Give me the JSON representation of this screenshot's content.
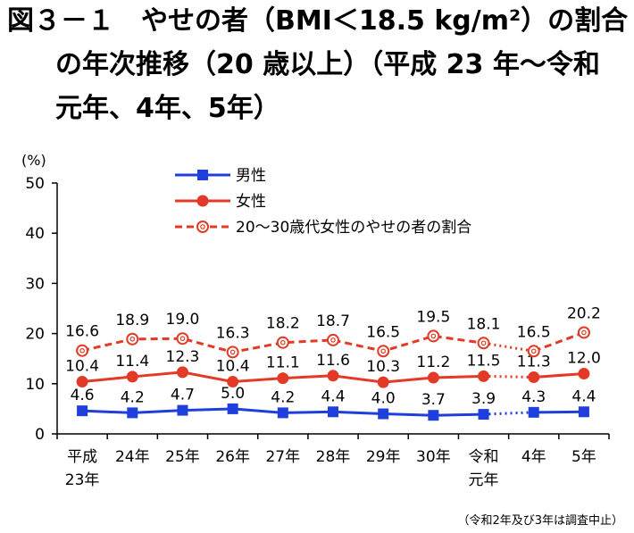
{
  "title": {
    "line1": "図３－１　やせの者（BMI＜18.5 kg/m²）の割合",
    "line2": "の年次推移（20 歳以上）（平成 23 年～令和",
    "line3": "元年、4年、5年）"
  },
  "note": "（令和2年及び3年は調査中止）",
  "colors": {
    "male": "#1f3fdc",
    "female": "#e23a26",
    "young_female": "#e23a26",
    "axis": "#000000"
  },
  "chart_data": {
    "type": "line",
    "ylabel": "(%)",
    "ylim": [
      0,
      50
    ],
    "yticks": [
      "0",
      "10",
      "20",
      "30",
      "40",
      "50"
    ],
    "categories": [
      [
        "平成",
        "23年"
      ],
      [
        "24年"
      ],
      [
        "25年"
      ],
      [
        "26年"
      ],
      [
        "27年"
      ],
      [
        "28年"
      ],
      [
        "29年"
      ],
      [
        "30年"
      ],
      [
        "令和",
        "元年"
      ],
      [
        "4年"
      ],
      [
        "5年"
      ]
    ],
    "series": [
      {
        "name": "男性",
        "key": "male",
        "marker": "square",
        "style": "solid",
        "values": [
          4.6,
          4.2,
          4.7,
          5.0,
          4.2,
          4.4,
          4.0,
          3.7,
          3.9,
          4.3,
          4.4
        ],
        "labels": [
          "4.6",
          "4.2",
          "4.7",
          "5.0",
          "4.2",
          "4.4",
          "4.0",
          "3.7",
          "3.9",
          "4.3",
          "4.4"
        ]
      },
      {
        "name": "女性",
        "key": "female",
        "marker": "circle",
        "style": "solid",
        "values": [
          10.4,
          11.4,
          12.3,
          10.4,
          11.1,
          11.6,
          10.3,
          11.2,
          11.5,
          11.3,
          12.0
        ],
        "labels": [
          "10.4",
          "11.4",
          "12.3",
          "10.4",
          "11.1",
          "11.6",
          "10.3",
          "11.2",
          "11.5",
          "11.3",
          "12.0"
        ]
      },
      {
        "name": "20～30歳代女性のやせの者の割合",
        "key": "young_female",
        "marker": "open-circle",
        "style": "dashed",
        "values": [
          16.6,
          18.9,
          19.0,
          16.3,
          18.2,
          18.7,
          16.5,
          19.5,
          18.1,
          16.5,
          20.2
        ],
        "labels": [
          "16.6",
          "18.9",
          "19.0",
          "16.3",
          "18.2",
          "18.7",
          "16.5",
          "19.5",
          "18.1",
          "16.5",
          "20.2"
        ]
      }
    ],
    "gap_after_index": 8,
    "legend_position": "top-left"
  }
}
